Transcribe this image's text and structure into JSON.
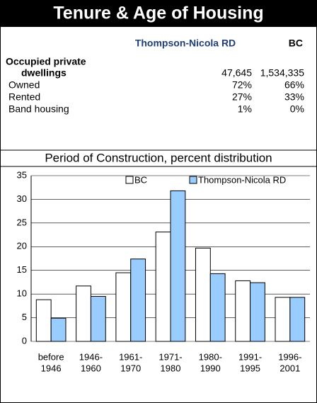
{
  "header": {
    "title": "Tenure & Age of Housing"
  },
  "table": {
    "columns": [
      "Thompson-Nicola RD",
      "BC"
    ],
    "rows": [
      {
        "label": [
          "Occupied private",
          "dwellings"
        ],
        "values": [
          "47,645",
          "1,534,335"
        ]
      },
      {
        "label": [
          "Owned"
        ],
        "values": [
          "72%",
          "66%"
        ]
      },
      {
        "label": [
          "Rented"
        ],
        "values": [
          "27%",
          "33%"
        ]
      },
      {
        "label": [
          "Band housing"
        ],
        "values": [
          "1%",
          "0%"
        ]
      }
    ]
  },
  "chart_data": {
    "type": "bar",
    "title": "Period of Construction, percent distribution",
    "categories": [
      [
        "before",
        "1946"
      ],
      [
        "1946-",
        "1960"
      ],
      [
        "1961-",
        "1970"
      ],
      [
        "1971-",
        "1980"
      ],
      [
        "1980-",
        "1990"
      ],
      [
        "1991-",
        "1995"
      ],
      [
        "1996-",
        "2001"
      ]
    ],
    "series": [
      {
        "name": "BC",
        "color": "#ffffff",
        "values": [
          8.8,
          11.7,
          14.5,
          23.1,
          19.7,
          12.8,
          9.3
        ]
      },
      {
        "name": "Thompson-Nicola RD",
        "color": "#99ccff",
        "values": [
          4.9,
          9.5,
          17.4,
          31.8,
          14.3,
          12.4,
          9.3
        ]
      }
    ],
    "ylim": [
      0,
      35
    ],
    "yticks": [
      0,
      5,
      10,
      15,
      20,
      25,
      30,
      35
    ],
    "grid": true
  }
}
